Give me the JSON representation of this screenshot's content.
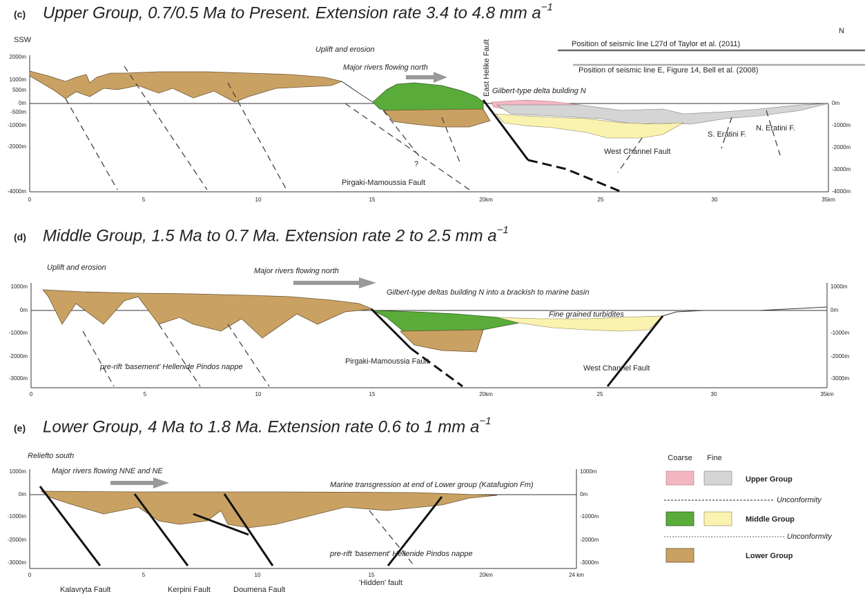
{
  "panels": [
    {
      "label": "(c)",
      "title": "Upper Group,  0.7/0.5 Ma to Present. Extension rate 3.4 to 4.8 mm a",
      "title_sup": "−1",
      "left_end": "SSW",
      "right_end": "N",
      "annotations": [
        "Uplift and erosion",
        "Major rivers flowing north",
        "East Helike Fault",
        "Gilbert-type delta building N",
        "Position of seismic line L27d of Taylor et al. (2011)",
        "Position of seismic line E, Figure 14, Bell et al. (2008)",
        "?",
        "Pirgaki-Mamoussia Fault",
        "West Channel Fault",
        "S. Eratini F.",
        "N. Eratini F."
      ],
      "y_left": [
        "2000m",
        "1000m",
        "500m",
        "0m",
        "-500m",
        "-1000m",
        "-2000m",
        "-4000m"
      ],
      "y_right": [
        "0m",
        "-1000m",
        "-2000m",
        "-3000m",
        "-4000m"
      ],
      "x_ticks": [
        "0",
        "5",
        "10",
        "15",
        "20km",
        "25",
        "30",
        "35km"
      ]
    },
    {
      "label": "(d)",
      "title": "Middle Group, 1.5 Ma to 0.7 Ma. Extension rate 2 to 2.5 mm a",
      "title_sup": "−1",
      "annotations": [
        "Uplift and erosion",
        "Major rivers flowing north",
        "Gilbert-type deltas building N  into a brackish to marine basin",
        "Fine grained turbidites",
        "pre-rift 'basement' Hellenide Pindos nappe",
        "Pirgaki-Mamoussia Fault",
        "West Channel Fault"
      ],
      "y_left": [
        "1000m",
        "0m",
        "-1000m",
        "-2000m",
        "-3000m"
      ],
      "y_right": [
        "1000m",
        "0m",
        "-1000m",
        "-2000m",
        "-3000m"
      ],
      "x_ticks": [
        "0",
        "5",
        "10",
        "15",
        "20km",
        "25",
        "30",
        "35km"
      ]
    },
    {
      "label": "(e)",
      "title": "Lower  Group, 4 Ma  to 1.8 Ma. Extension rate 0.6 to 1 mm a",
      "title_sup": "−1",
      "annotations": [
        "Reliefto south",
        "Major rivers flowing NNE and NE",
        "Marine transgression at end of Lower group (Katafugion Fm)",
        "pre-rift 'basement' Hellenide Pindos nappe"
      ],
      "faults": [
        "Kalavryta Fault",
        "Kerpini Fault",
        "Doumena Fault",
        "'Hidden' fault"
      ],
      "y_left": [
        "1000m",
        "0m",
        "-1000m",
        "-2000m",
        "-3000m"
      ],
      "y_right": [
        "1000m",
        "0m",
        "-1000m",
        "-2000m",
        "-3000m"
      ],
      "x_ticks": [
        "0",
        "5",
        "10",
        "15",
        "20km",
        "24 km"
      ]
    }
  ],
  "legend": {
    "coarse": "Coarse",
    "fine": "Fine",
    "upper": "Upper Group",
    "unconformity_1": "Unconformity",
    "middle": "Middle Group",
    "unconformity_2": "Unconformity",
    "lower": "Lower Group"
  }
}
